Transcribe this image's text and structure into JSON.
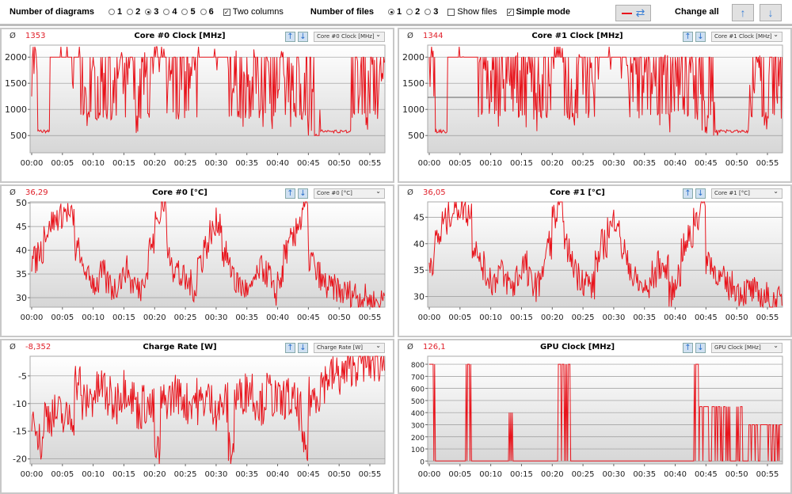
{
  "toolbar": {
    "diagrams_label": "Number of diagrams",
    "diagram_options": [
      "1",
      "2",
      "3",
      "4",
      "5",
      "6"
    ],
    "diagram_selected": "3",
    "two_columns_label": "Two columns",
    "two_columns_checked": true,
    "files_label": "Number of files",
    "file_options": [
      "1",
      "2",
      "3"
    ],
    "file_selected": "1",
    "show_files_label": "Show files",
    "show_files_checked": false,
    "simple_mode_label": "Simple mode",
    "simple_mode_checked": true,
    "change_all_label": "Change all"
  },
  "colors": {
    "line": "#e8141c",
    "avg": "#e0202a"
  },
  "chart_data": [
    {
      "type": "line",
      "title": "Core #0 Clock [MHz]",
      "avg_symbol": "Ø",
      "avg": "1353",
      "select": "Core #0 Clock [MHz]",
      "ylim": [
        170,
        2230
      ],
      "yticks": [
        500,
        1000,
        1500,
        2000
      ],
      "noise": 650,
      "hline": null,
      "values": [
        1900,
        600,
        200,
        2000,
        2000,
        2000,
        2000,
        2000,
        1400,
        1300,
        1500,
        1300,
        1400,
        1200,
        1500,
        1300,
        1400,
        1200,
        1500,
        1300,
        2200,
        2200,
        1400,
        1300,
        1500,
        1400,
        1300,
        2000,
        2000,
        2000,
        2000,
        2000,
        1400,
        1500,
        1300,
        1400,
        1500,
        1300,
        1400,
        1200,
        1500,
        1400,
        1300,
        1400,
        1200,
        1100,
        700,
        600,
        600,
        600,
        600,
        600,
        1300,
        1400,
        1200,
        1500,
        1300,
        1400
      ]
    },
    {
      "type": "line",
      "title": "Core #1 Clock [MHz]",
      "avg_symbol": "Ø",
      "avg": "1344",
      "select": "Core #1 Clock [MHz]",
      "ylim": [
        170,
        2230
      ],
      "yticks": [
        500,
        1000,
        1500,
        2000
      ],
      "noise": 650,
      "hline": 1230,
      "values": [
        1900,
        600,
        200,
        2000,
        2000,
        2000,
        2000,
        2000,
        1400,
        1300,
        1500,
        1300,
        1400,
        1200,
        1500,
        1300,
        1400,
        1200,
        1500,
        1300,
        2000,
        2200,
        1400,
        1300,
        1500,
        1400,
        1300,
        2000,
        2000,
        2000,
        2000,
        2000,
        1400,
        1500,
        1300,
        1400,
        1500,
        1300,
        1400,
        1200,
        1500,
        1400,
        1300,
        1400,
        1200,
        1100,
        700,
        600,
        600,
        600,
        600,
        600,
        1300,
        1400,
        1200,
        1500,
        1300,
        1400
      ]
    },
    {
      "type": "line",
      "title": "Core #0 [°C]",
      "avg_symbol": "Ø",
      "avg": "36,29",
      "select": "Core #0 [°C]",
      "ylim": [
        28,
        50.2
      ],
      "yticks": [
        30,
        35,
        40,
        45,
        50
      ],
      "noise": 3,
      "hline": null,
      "values": [
        38,
        40,
        44,
        46,
        47,
        48,
        47,
        40,
        36,
        34,
        33,
        35,
        33,
        32,
        34,
        36,
        33,
        32,
        35,
        41,
        46,
        50,
        39,
        36,
        34,
        33,
        32,
        38,
        41,
        44,
        46,
        39,
        36,
        33,
        32,
        31,
        34,
        36,
        35,
        31,
        34,
        40,
        42,
        46,
        49,
        38,
        35,
        33,
        32,
        32,
        31,
        31,
        31,
        30,
        30,
        29,
        29,
        30
      ]
    },
    {
      "type": "line",
      "title": "Core #1 [°C]",
      "avg_symbol": "Ø",
      "avg": "36,05",
      "select": "Core #1 [°C]",
      "ylim": [
        28,
        47.9
      ],
      "yticks": [
        30,
        35,
        40,
        45
      ],
      "noise": 3,
      "hline": null,
      "values": [
        37,
        41,
        44,
        46,
        47,
        47,
        46,
        40,
        36,
        34,
        33,
        35,
        33,
        32,
        34,
        36,
        33,
        32,
        35,
        40,
        45,
        47,
        39,
        36,
        34,
        33,
        32,
        37,
        40,
        43,
        45,
        39,
        36,
        33,
        32,
        31,
        34,
        36,
        35,
        31,
        34,
        39,
        41,
        45,
        48,
        37,
        35,
        33,
        32,
        32,
        31,
        31,
        31,
        30,
        30,
        29,
        29,
        29
      ]
    },
    {
      "type": "line",
      "title": "Charge Rate [W]",
      "avg_symbol": "Ø",
      "avg": "-8,352",
      "select": "Charge Rate [W]",
      "ylim": [
        -20.9,
        -1.45
      ],
      "yticks": [
        -20,
        -15,
        -10,
        -5
      ],
      "noise": 4,
      "hline": null,
      "values": [
        -12,
        -17,
        -12,
        -12,
        -12,
        -13,
        -12,
        -6,
        -10,
        -9,
        -8,
        -7,
        -9,
        -10,
        -8,
        -7,
        -9,
        -11,
        -10,
        -11,
        -19,
        -10,
        -9,
        -8,
        -9,
        -10,
        -9,
        -10,
        -9,
        -10,
        -11,
        -10,
        -18,
        -9,
        -8,
        -7,
        -9,
        -10,
        -8,
        -9,
        -10,
        -9,
        -10,
        -11,
        -19,
        -9,
        -8,
        -6,
        -5,
        -5,
        -5,
        -4,
        -3,
        -2.5,
        -2.5,
        -2.5,
        -2.5,
        -2.5
      ]
    },
    {
      "type": "line",
      "title": "GPU Clock [MHz]",
      "avg_symbol": "Ø",
      "avg": "126,1",
      "select": "GPU Clock [MHz]",
      "ylim": [
        -24,
        866
      ],
      "yticks": [
        0,
        100,
        200,
        300,
        400,
        500,
        600,
        700,
        800
      ],
      "noise": 0,
      "hline": null,
      "values": [
        800,
        0,
        0,
        0,
        0,
        0,
        800,
        0,
        0,
        0,
        0,
        0,
        0,
        400,
        0,
        0,
        0,
        0,
        0,
        0,
        0,
        800,
        800,
        0,
        0,
        0,
        0,
        0,
        0,
        0,
        0,
        0,
        0,
        0,
        0,
        0,
        0,
        0,
        0,
        0,
        0,
        0,
        0,
        800,
        450,
        450,
        450,
        450,
        450,
        0,
        450,
        0,
        300,
        300,
        300,
        300,
        300,
        300
      ]
    }
  ],
  "xticks": [
    "00:00",
    "00:05",
    "00:10",
    "00:15",
    "00:20",
    "00:25",
    "00:30",
    "00:35",
    "00:40",
    "00:45",
    "00:50",
    "00:55"
  ]
}
